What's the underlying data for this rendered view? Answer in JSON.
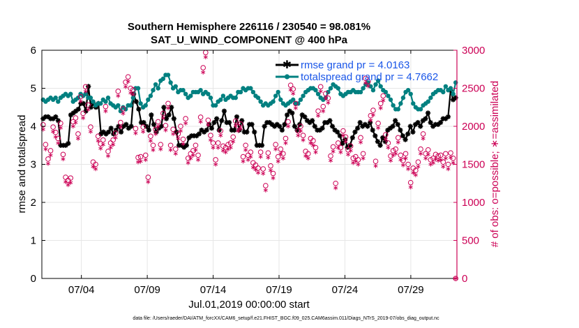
{
  "chart_data": {
    "type": "line",
    "title": "Southern Hemisphere 226116 / 230540 = 98.081%",
    "subtitle": "SAT_U_WIND_COMPONENT @ 400 hPa",
    "xlabel": "Jul.01,2019 00:00:00 start",
    "ylabel": "rmse and totalspread",
    "y2label": "# of obs: o=possible; ∗=assimilated",
    "xlim": [
      1,
      32.5
    ],
    "ylim": [
      0,
      6
    ],
    "y2lim": [
      0,
      3000
    ],
    "x_ticks": [
      4,
      9,
      14,
      19,
      24,
      29
    ],
    "x_tick_labels": [
      "07/04",
      "07/09",
      "07/14",
      "07/19",
      "07/24",
      "07/29"
    ],
    "y_ticks": [
      0,
      1,
      2,
      3,
      4,
      5,
      6
    ],
    "y_tick_labels": [
      "0",
      "1",
      "2",
      "3",
      "4",
      "5",
      "6"
    ],
    "y2_ticks": [
      0,
      500,
      1000,
      1500,
      2000,
      2500,
      3000
    ],
    "y2_tick_labels": [
      "0",
      "500",
      "1000",
      "1500",
      "2000",
      "2500",
      "3000"
    ],
    "grid": true,
    "legend": [
      {
        "label": "rmse grand pr = 4.0163",
        "color": "#000000"
      },
      {
        "label": "totalspread grand pr = 4.7662",
        "color": "#008080"
      }
    ],
    "series": [
      {
        "name": "rmse grand pr = 4.0163",
        "color": "#000000",
        "axis": "left",
        "marker": "star",
        "values": [
          4.2,
          4.25,
          4.25,
          4.2,
          4.2,
          4.25,
          4.15,
          3.5,
          3.5,
          3.5,
          3.55,
          4.3,
          4.35,
          4.4,
          4.45,
          4.6,
          4.6,
          4.4,
          5.05,
          4.5,
          4.6,
          4.5,
          4.6,
          3.8,
          3.85,
          3.8,
          3.85,
          3.95,
          3.8,
          3.9,
          4.0,
          3.85,
          4.0,
          4.05,
          3.95,
          4.0,
          4.85,
          4.65,
          4.45,
          4.1,
          4.1,
          4.0,
          3.9,
          4.3,
          4.05,
          3.85,
          3.95,
          4.0,
          4.5,
          4.2,
          4.3,
          4.5,
          4.2,
          3.85,
          3.5,
          3.5,
          3.45,
          3.5,
          3.7,
          3.75,
          3.75,
          3.75,
          3.8,
          3.9,
          3.85,
          3.9,
          4.05,
          3.95,
          4.1,
          4.2,
          3.9,
          4.15,
          4.4,
          4.1,
          4.1,
          3.9,
          3.9,
          4.25,
          3.9,
          4.15,
          3.85,
          3.85,
          4.05,
          4.05,
          3.85,
          3.5,
          3.5,
          3.5,
          4.0,
          4.1,
          4.1,
          4.05,
          4.0,
          4.05,
          4.0,
          3.9,
          4.05,
          4.3,
          4.4,
          4.35,
          4.0,
          3.9,
          4.05,
          4.3,
          4.25,
          4.15,
          4.1,
          4.15,
          4.0,
          3.9,
          3.9,
          3.95,
          4.1,
          4.1,
          4.15,
          4.0,
          3.9,
          3.85,
          3.75,
          3.55,
          3.65,
          3.45,
          3.5,
          3.7,
          3.85,
          3.95,
          4.1,
          4.0,
          4.05,
          4.0,
          4.1,
          3.9,
          3.75,
          3.6,
          3.5,
          3.7,
          3.6,
          3.9,
          3.95,
          4.0,
          4.15,
          4.05,
          3.9,
          3.75,
          3.65,
          3.8,
          4.0,
          3.85,
          4.05,
          4.1,
          4.0,
          4.15,
          4.2,
          4.35,
          4.1,
          4.0,
          4.05,
          4.05,
          4.1,
          4.2,
          4.2,
          4.25,
          4.95,
          4.7,
          4.75
        ]
      },
      {
        "name": "totalspread grand pr = 4.7662",
        "color": "#008080",
        "axis": "left",
        "marker": "dot",
        "values": [
          4.7,
          4.65,
          4.7,
          4.75,
          4.7,
          4.75,
          4.65,
          4.75,
          4.8,
          4.85,
          4.8,
          4.85,
          4.65,
          4.7,
          4.75,
          4.85,
          4.8,
          4.85,
          4.75,
          4.75,
          4.65,
          4.55,
          4.6,
          4.6,
          4.7,
          4.65,
          4.75,
          4.6,
          4.55,
          4.5,
          4.55,
          4.4,
          4.5,
          4.45,
          4.55,
          4.55,
          4.75,
          5.0,
          5.0,
          4.6,
          4.5,
          4.55,
          4.7,
          4.8,
          4.95,
          5.1,
          5.0,
          5.2,
          5.25,
          5.35,
          5.35,
          5.15,
          5.0,
          5.05,
          4.9,
          4.95,
          4.95,
          4.85,
          4.75,
          4.8,
          4.9,
          4.9,
          4.9,
          4.95,
          4.85,
          4.9,
          4.85,
          4.75,
          4.55,
          4.55,
          4.65,
          4.7,
          4.8,
          4.7,
          4.75,
          4.8,
          4.75,
          4.75,
          4.9,
          4.9,
          5.0,
          4.95,
          5.0,
          5.0,
          4.9,
          4.8,
          4.75,
          4.65,
          4.55,
          4.6,
          4.55,
          4.6,
          4.65,
          4.8,
          4.9,
          4.7,
          4.6,
          4.55,
          4.6,
          4.65,
          4.7,
          4.6,
          4.6,
          4.7,
          4.8,
          4.9,
          4.95,
          5.0,
          5.0,
          4.95,
          4.85,
          4.75,
          4.7,
          4.75,
          4.9,
          5.0,
          5.1,
          5.05,
          5.0,
          4.85,
          4.8,
          4.85,
          4.9,
          4.9,
          4.95,
          4.9,
          4.9,
          4.9,
          5.0,
          5.1,
          5.15,
          5.05,
          4.95,
          5.1,
          5.2,
          5.05,
          4.95,
          4.9,
          4.8,
          4.7,
          4.55,
          4.45,
          4.45,
          4.6,
          4.75,
          4.9,
          4.95,
          4.85,
          4.6,
          4.5,
          4.45,
          4.45,
          4.55,
          4.6,
          4.65,
          4.75,
          4.85,
          4.9,
          4.95,
          4.95,
          4.9,
          5.05,
          4.95,
          5.0,
          4.85,
          5.15
        ]
      },
      {
        "name": "obs possible",
        "color": "#cc0055",
        "axis": "right",
        "marker": "circle",
        "values": [
          2020,
          1760,
          1570,
          1680,
          1990,
          1920,
          1840,
          2040,
          1630,
          1330,
          1290,
          1320,
          2060,
          2110,
          1900,
          2390,
          2170,
          2520,
          2280,
          1990,
          1530,
          1500,
          1870,
          1770,
          1820,
          2260,
          1670,
          1780,
          1820,
          1910,
          2460,
          2050,
          2230,
          2580,
          2650,
          2500,
          2480,
          1970,
          1590,
          1600,
          1990,
          1620,
          1330,
          1870,
          1750,
          1960,
          2060,
          1760,
          2170,
          2010,
          2300,
          1750,
          1960,
          1700,
          1900,
          2000,
          1830,
          2100,
          1580,
          1640,
          1680,
          1750,
          1620,
          2120,
          2770,
          2970,
          2080,
          1880,
          1780,
          1560,
          1780,
          1940,
          1740,
          1720,
          1760,
          1780,
          1860,
          2070,
          2000,
          2030,
          1600,
          1750,
          1620,
          1660,
          1520,
          1490,
          1450,
          1660,
          1440,
          1220,
          1650,
          1480,
          1380,
          1760,
          1600,
          1700,
          1640,
          1840,
          2060,
          2540,
          2490,
          2300,
          1940,
          2000,
          1880,
          1670,
          1640,
          1840,
          1810,
          1720,
          2200,
          2520,
          2260,
          2430,
          2370,
          1610,
          1730,
          1250,
          1780,
          1720,
          1940,
          1860,
          1690,
          1740,
          1580,
          1600,
          1560,
          1850,
          1640,
          2630,
          2590,
          2140,
          2210,
          1540,
          2040,
          2300,
          2400,
          1890,
          1780,
          1610,
          1680,
          1700,
          1850,
          1620,
          1550,
          1640,
          1500,
          1260,
          1450,
          1420,
          1530,
          1700,
          1900,
          1640,
          1690,
          1560,
          1580,
          1630,
          1610,
          1620,
          1530,
          1640,
          1500,
          1650,
          1580,
          0
        ]
      },
      {
        "name": "obs assimilated",
        "color": "#cc0055",
        "axis": "right",
        "marker": "asterisk",
        "values": [
          1960,
          1700,
          1510,
          1620,
          1930,
          1860,
          1780,
          1980,
          1570,
          1270,
          1230,
          1260,
          2000,
          2050,
          1840,
          2330,
          2110,
          2460,
          2220,
          1930,
          1470,
          1440,
          1810,
          1710,
          1760,
          2200,
          1610,
          1720,
          1760,
          1850,
          2400,
          1990,
          2170,
          2520,
          2590,
          2440,
          2420,
          1910,
          1530,
          1540,
          1930,
          1560,
          1270,
          1810,
          1690,
          1900,
          2000,
          1700,
          2110,
          1950,
          2240,
          1690,
          1900,
          1640,
          1840,
          1940,
          1770,
          2040,
          1520,
          1580,
          1620,
          1690,
          1560,
          2060,
          2710,
          2910,
          2020,
          1820,
          1720,
          1500,
          1720,
          1880,
          1680,
          1660,
          1700,
          1720,
          1800,
          2010,
          1940,
          1970,
          1540,
          1690,
          1560,
          1600,
          1460,
          1430,
          1390,
          1600,
          1380,
          1160,
          1590,
          1420,
          1320,
          1700,
          1540,
          1640,
          1580,
          1780,
          2000,
          2480,
          2430,
          2240,
          1880,
          1940,
          1820,
          1610,
          1580,
          1780,
          1750,
          1660,
          2140,
          2460,
          2200,
          2370,
          2310,
          1550,
          1670,
          1190,
          1720,
          1660,
          1880,
          1800,
          1630,
          1680,
          1520,
          1540,
          1500,
          1790,
          1580,
          2570,
          2530,
          2080,
          2150,
          1480,
          1980,
          2240,
          2340,
          1830,
          1720,
          1550,
          1620,
          1640,
          1790,
          1560,
          1490,
          1580,
          1440,
          1200,
          1390,
          1360,
          1470,
          1640,
          1840,
          1580,
          1630,
          1500,
          1520,
          1570,
          1550,
          1560,
          1470,
          1580,
          1440,
          1590,
          1520,
          0
        ]
      }
    ]
  },
  "footer": "data file: /Users/raeder/DAI/ATM_forcXX/CAM6_setup/f.e21.FHIST_BGC.f09_025.CAM6assim.011/Diags_NTrS_2019-07/obs_diag_output.nc",
  "colors": {
    "rmse": "#000000",
    "spread": "#008080",
    "obs": "#cc0055",
    "legend_text": "#1a56e8",
    "grid": "#e6e6e6"
  }
}
